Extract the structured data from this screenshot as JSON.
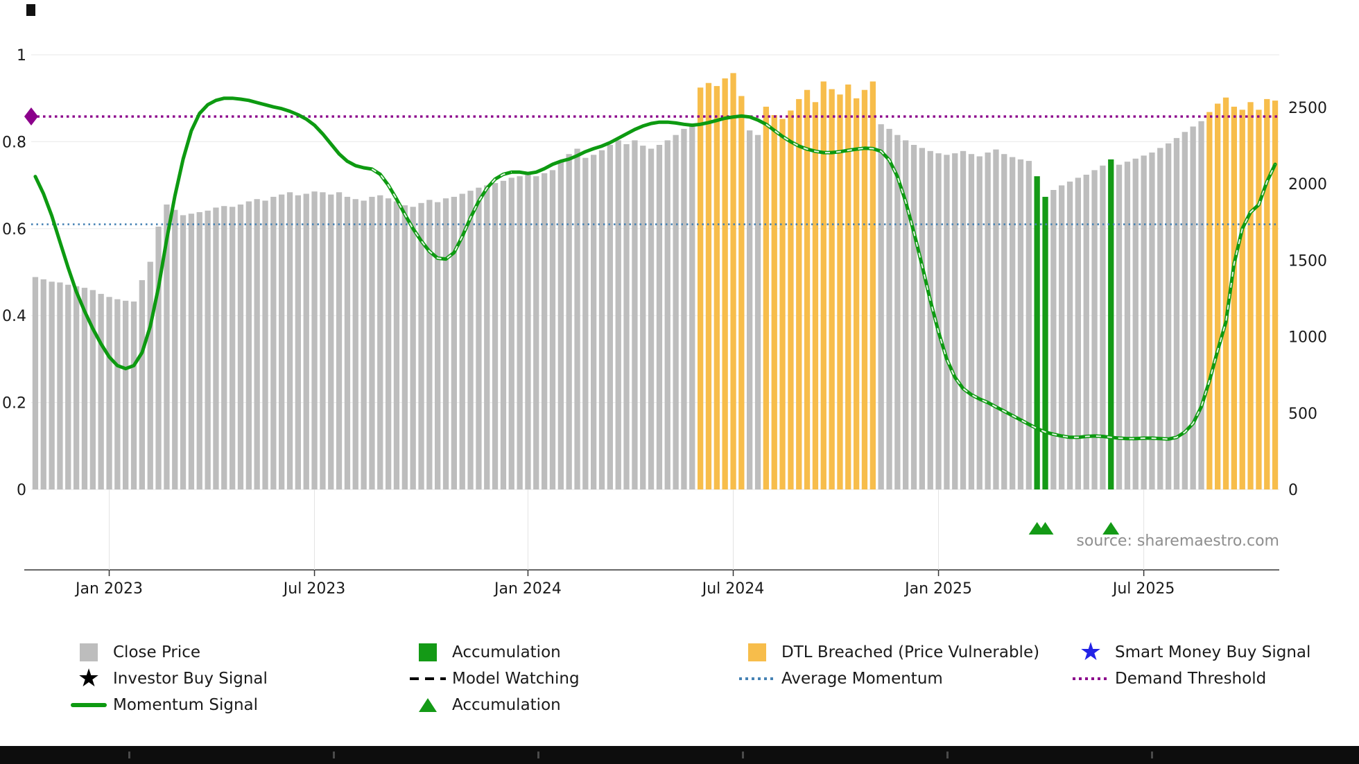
{
  "source_text": "source: sharemaestro.com",
  "chart_data": {
    "type": "bar",
    "title": "",
    "xlabel": "",
    "ylabel": "",
    "x_tick_labels": [
      "Jan 2023",
      "Jul 2023",
      "Jan 2024",
      "Jul 2024",
      "Jan 2025",
      "Jul 2025"
    ],
    "x_tick_weeks": [
      9,
      34,
      60,
      85,
      110,
      135
    ],
    "left_axis": {
      "label_values": [
        "1",
        "0.8",
        "0.6",
        "0.4",
        "0.2",
        "0"
      ],
      "values": [
        1,
        0.8,
        0.6,
        0.4,
        0.2,
        0
      ],
      "range": [
        0,
        1
      ]
    },
    "right_axis": {
      "label_values": [
        "2500",
        "2000",
        "1500",
        "1000",
        "500",
        "0"
      ],
      "values": [
        2500,
        2000,
        1500,
        1000,
        500,
        0
      ],
      "range_top": 2500
    },
    "series": [
      {
        "name": "Close Price",
        "type": "bar",
        "values": [
          1390,
          1375,
          1360,
          1355,
          1340,
          1330,
          1320,
          1305,
          1280,
          1260,
          1245,
          1235,
          1230,
          1370,
          1490,
          1720,
          1865,
          1830,
          1795,
          1805,
          1815,
          1825,
          1845,
          1855,
          1850,
          1865,
          1885,
          1900,
          1890,
          1915,
          1930,
          1945,
          1925,
          1935,
          1950,
          1945,
          1930,
          1945,
          1915,
          1900,
          1890,
          1915,
          1925,
          1905,
          1885,
          1860,
          1850,
          1875,
          1895,
          1880,
          1905,
          1915,
          1935,
          1955,
          1975,
          1990,
          2005,
          2020,
          2040,
          2050,
          2060,
          2050,
          2070,
          2090,
          2150,
          2195,
          2230,
          2170,
          2190,
          2220,
          2255,
          2285,
          2260,
          2285,
          2250,
          2230,
          2255,
          2285,
          2320,
          2360,
          2395,
          2630,
          2660,
          2640,
          2690,
          2725,
          2575,
          2350,
          2320,
          2505,
          2450,
          2425,
          2480,
          2555,
          2615,
          2535,
          2670,
          2620,
          2585,
          2650,
          2560,
          2615,
          2670,
          2390,
          2360,
          2320,
          2285,
          2255,
          2235,
          2215,
          2200,
          2190,
          2200,
          2215,
          2195,
          2180,
          2205,
          2225,
          2195,
          2175,
          2160,
          2150,
          2050,
          1915,
          1960,
          1990,
          2015,
          2040,
          2060,
          2090,
          2120,
          2160,
          2125,
          2145,
          2165,
          2185,
          2205,
          2235,
          2265,
          2300,
          2340,
          2375,
          2410,
          2470,
          2525,
          2565,
          2505,
          2485,
          2535,
          2485,
          2555,
          2545
        ]
      },
      {
        "name": "Momentum Signal",
        "type": "line",
        "values": [
          0.72,
          0.68,
          0.63,
          0.57,
          0.51,
          0.455,
          0.41,
          0.37,
          0.335,
          0.305,
          0.285,
          0.278,
          0.285,
          0.315,
          0.375,
          0.465,
          0.575,
          0.675,
          0.76,
          0.825,
          0.865,
          0.885,
          0.895,
          0.9,
          0.9,
          0.898,
          0.895,
          0.89,
          0.885,
          0.88,
          0.876,
          0.87,
          0.862,
          0.852,
          0.838,
          0.818,
          0.795,
          0.772,
          0.755,
          0.745,
          0.74,
          0.737,
          0.725,
          0.7,
          0.668,
          0.633,
          0.6,
          0.572,
          0.548,
          0.532,
          0.53,
          0.545,
          0.582,
          0.625,
          0.663,
          0.693,
          0.714,
          0.725,
          0.73,
          0.73,
          0.727,
          0.73,
          0.738,
          0.748,
          0.755,
          0.76,
          0.768,
          0.777,
          0.784,
          0.79,
          0.798,
          0.808,
          0.818,
          0.828,
          0.836,
          0.842,
          0.845,
          0.845,
          0.843,
          0.84,
          0.838,
          0.84,
          0.844,
          0.849,
          0.854,
          0.857,
          0.859,
          0.857,
          0.85,
          0.84,
          0.826,
          0.812,
          0.8,
          0.79,
          0.783,
          0.778,
          0.775,
          0.775,
          0.777,
          0.78,
          0.783,
          0.785,
          0.784,
          0.778,
          0.758,
          0.72,
          0.662,
          0.592,
          0.515,
          0.435,
          0.362,
          0.3,
          0.258,
          0.232,
          0.218,
          0.208,
          0.2,
          0.19,
          0.18,
          0.17,
          0.16,
          0.15,
          0.14,
          0.132,
          0.127,
          0.123,
          0.12,
          0.12,
          0.122,
          0.123,
          0.122,
          0.12,
          0.118,
          0.117,
          0.117,
          0.118,
          0.118,
          0.117,
          0.116,
          0.12,
          0.132,
          0.152,
          0.19,
          0.25,
          0.32,
          0.385,
          0.52,
          0.6,
          0.638,
          0.655,
          0.708,
          0.748
        ]
      }
    ],
    "dtl_breached_ranges": [
      [
        81,
        86
      ],
      [
        89,
        102
      ],
      [
        143,
        151
      ]
    ],
    "accumulation_bar_weeks": [
      122,
      123,
      131
    ],
    "accumulation_marker_weeks": [
      122,
      123,
      131
    ],
    "model_watching_ranges": [
      [
        41,
        58
      ],
      [
        89,
        151
      ]
    ],
    "average_momentum": 0.61,
    "demand_threshold": 0.858,
    "grid": "on",
    "colors": {
      "close_price_bar": "#bdbdbd",
      "dtl_breached_bar": "#f7bd4b",
      "accumulation_green": "#149a16",
      "momentum_line": "#0d9a11",
      "average_momentum": "#4682B4",
      "demand_threshold": "#8B008B",
      "smart_money_star": "#2323e6",
      "investor_star": "#000000"
    }
  },
  "legend": {
    "items": [
      {
        "label": "Close Price",
        "swatch": "square",
        "color": "#bdbdbd"
      },
      {
        "label": "Investor Buy Signal",
        "swatch": "star",
        "color": "#000000"
      },
      {
        "label": "Momentum Signal",
        "swatch": "line",
        "color": "#0d9a11"
      },
      {
        "label": "Accumulation",
        "swatch": "square",
        "color": "#149a16"
      },
      {
        "label": "Model Watching",
        "swatch": "dash",
        "color": "#000000"
      },
      {
        "label": "Accumulation",
        "swatch": "triangle",
        "color": "#149a16"
      },
      {
        "label": "DTL Breached (Price Vulnerable)",
        "swatch": "square",
        "color": "#f7bd4b"
      },
      {
        "label": "Average Momentum",
        "swatch": "dots",
        "color": "#4682B4"
      },
      {
        "label": "Smart Money Buy Signal",
        "swatch": "star",
        "color": "#2323e6"
      },
      {
        "label": "Demand Threshold",
        "swatch": "dots",
        "color": "#8B008B"
      }
    ]
  }
}
